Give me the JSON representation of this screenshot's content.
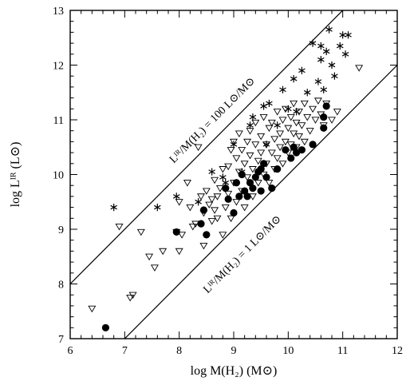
{
  "chart_data": {
    "type": "scatter",
    "title": "",
    "xlabel": "log M(H₂) (M⊙)",
    "ylabel": "log Lᴵᴿ (L⊙)",
    "xlim": [
      6,
      12
    ],
    "ylim": [
      7,
      13
    ],
    "x_ticks": [
      6,
      7,
      8,
      9,
      10,
      11,
      12
    ],
    "y_ticks": [
      7,
      8,
      9,
      10,
      11,
      12,
      13
    ],
    "x_tick_labels": [
      "6",
      "7",
      "8",
      "9",
      "10",
      "11",
      "12"
    ],
    "y_tick_labels": [
      "7",
      "8",
      "9",
      "10",
      "11",
      "12",
      "13"
    ],
    "grid": false,
    "reference_lines": [
      {
        "label": "Lᴵᴿ/M(H₂) = 100 L⊙/M⊙",
        "intercept": 2,
        "slope": 1
      },
      {
        "label": "Lᴵᴿ/M(H₂) = 1 L⊙/M⊙",
        "intercept": 0,
        "slope": 1
      }
    ],
    "series": [
      {
        "marker": "triangle-down-open",
        "points": [
          [
            6.4,
            7.55
          ],
          [
            6.9,
            9.05
          ],
          [
            7.1,
            7.75
          ],
          [
            7.15,
            7.8
          ],
          [
            7.3,
            8.95
          ],
          [
            7.45,
            8.5
          ],
          [
            7.55,
            8.3
          ],
          [
            7.7,
            8.6
          ],
          [
            7.95,
            8.95
          ],
          [
            8.0,
            9.5
          ],
          [
            8.0,
            8.6
          ],
          [
            8.05,
            8.9
          ],
          [
            8.15,
            9.85
          ],
          [
            8.2,
            9.4
          ],
          [
            8.25,
            9.05
          ],
          [
            8.3,
            9.1
          ],
          [
            8.35,
            10.5
          ],
          [
            8.4,
            9.6
          ],
          [
            8.45,
            9.3
          ],
          [
            8.45,
            8.7
          ],
          [
            8.5,
            9.7
          ],
          [
            8.55,
            9.45
          ],
          [
            8.6,
            9.55
          ],
          [
            8.6,
            9.15
          ],
          [
            8.65,
            9.9
          ],
          [
            8.65,
            9.35
          ],
          [
            8.7,
            9.6
          ],
          [
            8.7,
            9.2
          ],
          [
            8.75,
            9.75
          ],
          [
            8.8,
            8.9
          ],
          [
            8.8,
            10.1
          ],
          [
            8.85,
            9.4
          ],
          [
            8.9,
            9.65
          ],
          [
            8.9,
            10.15
          ],
          [
            8.95,
            9.2
          ],
          [
            8.95,
            10.45
          ],
          [
            9.0,
            9.85
          ],
          [
            9.0,
            10.6
          ],
          [
            9.05,
            10.3
          ],
          [
            9.05,
            9.5
          ],
          [
            9.1,
            10.05
          ],
          [
            9.1,
            10.75
          ],
          [
            9.15,
            9.7
          ],
          [
            9.15,
            10.45
          ],
          [
            9.2,
            10.2
          ],
          [
            9.2,
            9.4
          ],
          [
            9.25,
            10.6
          ],
          [
            9.25,
            9.95
          ],
          [
            9.3,
            10.8
          ],
          [
            9.3,
            10.35
          ],
          [
            9.35,
            9.6
          ],
          [
            9.35,
            10.1
          ],
          [
            9.4,
            10.55
          ],
          [
            9.4,
            10.95
          ],
          [
            9.45,
            9.85
          ],
          [
            9.45,
            10.25
          ],
          [
            9.5,
            10.7
          ],
          [
            9.5,
            10.4
          ],
          [
            9.55,
            10.0
          ],
          [
            9.55,
            11.05
          ],
          [
            9.6,
            10.55
          ],
          [
            9.6,
            10.2
          ],
          [
            9.65,
            10.85
          ],
          [
            9.65,
            9.85
          ],
          [
            9.7,
            10.4
          ],
          [
            9.7,
            10.95
          ],
          [
            9.75,
            10.65
          ],
          [
            9.75,
            10.1
          ],
          [
            9.8,
            11.15
          ],
          [
            9.8,
            10.3
          ],
          [
            9.85,
            10.75
          ],
          [
            9.85,
            10.5
          ],
          [
            9.9,
            11.0
          ],
          [
            9.9,
            10.2
          ],
          [
            9.95,
            10.6
          ],
          [
            9.95,
            11.2
          ],
          [
            10.0,
            10.85
          ],
          [
            10.0,
            10.4
          ],
          [
            10.05,
            11.05
          ],
          [
            10.05,
            10.55
          ],
          [
            10.1,
            10.75
          ],
          [
            10.1,
            11.3
          ],
          [
            10.15,
            10.95
          ],
          [
            10.15,
            10.5
          ],
          [
            10.2,
            11.15
          ],
          [
            10.2,
            10.7
          ],
          [
            10.25,
            10.9
          ],
          [
            10.3,
            11.3
          ],
          [
            10.3,
            10.6
          ],
          [
            10.35,
            11.05
          ],
          [
            10.4,
            10.8
          ],
          [
            10.45,
            11.2
          ],
          [
            10.5,
            11.0
          ],
          [
            10.55,
            11.35
          ],
          [
            10.6,
            11.1
          ],
          [
            10.65,
            10.9
          ],
          [
            10.7,
            11.3
          ],
          [
            10.8,
            11.0
          ],
          [
            10.9,
            11.15
          ],
          [
            11.3,
            11.95
          ]
        ]
      },
      {
        "marker": "asterisk",
        "points": [
          [
            6.8,
            9.4
          ],
          [
            7.6,
            9.4
          ],
          [
            7.95,
            9.6
          ],
          [
            8.35,
            9.5
          ],
          [
            8.6,
            10.05
          ],
          [
            8.8,
            9.95
          ],
          [
            8.85,
            9.85
          ],
          [
            9.0,
            10.55
          ],
          [
            9.15,
            10.05
          ],
          [
            9.3,
            10.9
          ],
          [
            9.35,
            11.05
          ],
          [
            9.55,
            11.25
          ],
          [
            9.6,
            10.55
          ],
          [
            9.65,
            11.3
          ],
          [
            9.8,
            10.9
          ],
          [
            9.9,
            11.55
          ],
          [
            10.0,
            11.2
          ],
          [
            10.1,
            11.75
          ],
          [
            10.15,
            11.15
          ],
          [
            10.25,
            11.9
          ],
          [
            10.35,
            11.5
          ],
          [
            10.45,
            12.4
          ],
          [
            10.55,
            11.7
          ],
          [
            10.6,
            12.1
          ],
          [
            10.65,
            11.55
          ],
          [
            10.7,
            12.25
          ],
          [
            10.75,
            12.65
          ],
          [
            10.8,
            12.0
          ],
          [
            10.85,
            11.8
          ],
          [
            10.95,
            12.35
          ],
          [
            11.0,
            12.55
          ],
          [
            11.05,
            12.2
          ],
          [
            11.1,
            12.55
          ],
          [
            10.6,
            12.35
          ]
        ]
      },
      {
        "marker": "filled-circle",
        "points": [
          [
            6.65,
            7.2
          ],
          [
            7.95,
            8.95
          ],
          [
            8.4,
            9.1
          ],
          [
            8.45,
            9.35
          ],
          [
            8.5,
            8.9
          ],
          [
            8.85,
            9.75
          ],
          [
            8.9,
            9.55
          ],
          [
            9.0,
            9.3
          ],
          [
            9.05,
            9.85
          ],
          [
            9.1,
            9.6
          ],
          [
            9.15,
            10.0
          ],
          [
            9.2,
            9.7
          ],
          [
            9.25,
            9.6
          ],
          [
            9.3,
            9.85
          ],
          [
            9.35,
            9.75
          ],
          [
            9.4,
            9.95
          ],
          [
            9.45,
            10.05
          ],
          [
            9.5,
            9.7
          ],
          [
            9.55,
            10.2
          ],
          [
            9.6,
            9.95
          ],
          [
            9.7,
            9.75
          ],
          [
            9.8,
            10.1
          ],
          [
            9.95,
            10.45
          ],
          [
            10.05,
            10.3
          ],
          [
            10.1,
            10.5
          ],
          [
            10.15,
            10.4
          ],
          [
            10.25,
            10.45
          ],
          [
            10.45,
            10.55
          ],
          [
            10.65,
            10.85
          ],
          [
            10.65,
            11.05
          ],
          [
            10.7,
            11.25
          ],
          [
            9.5,
            10.1
          ]
        ]
      }
    ]
  }
}
